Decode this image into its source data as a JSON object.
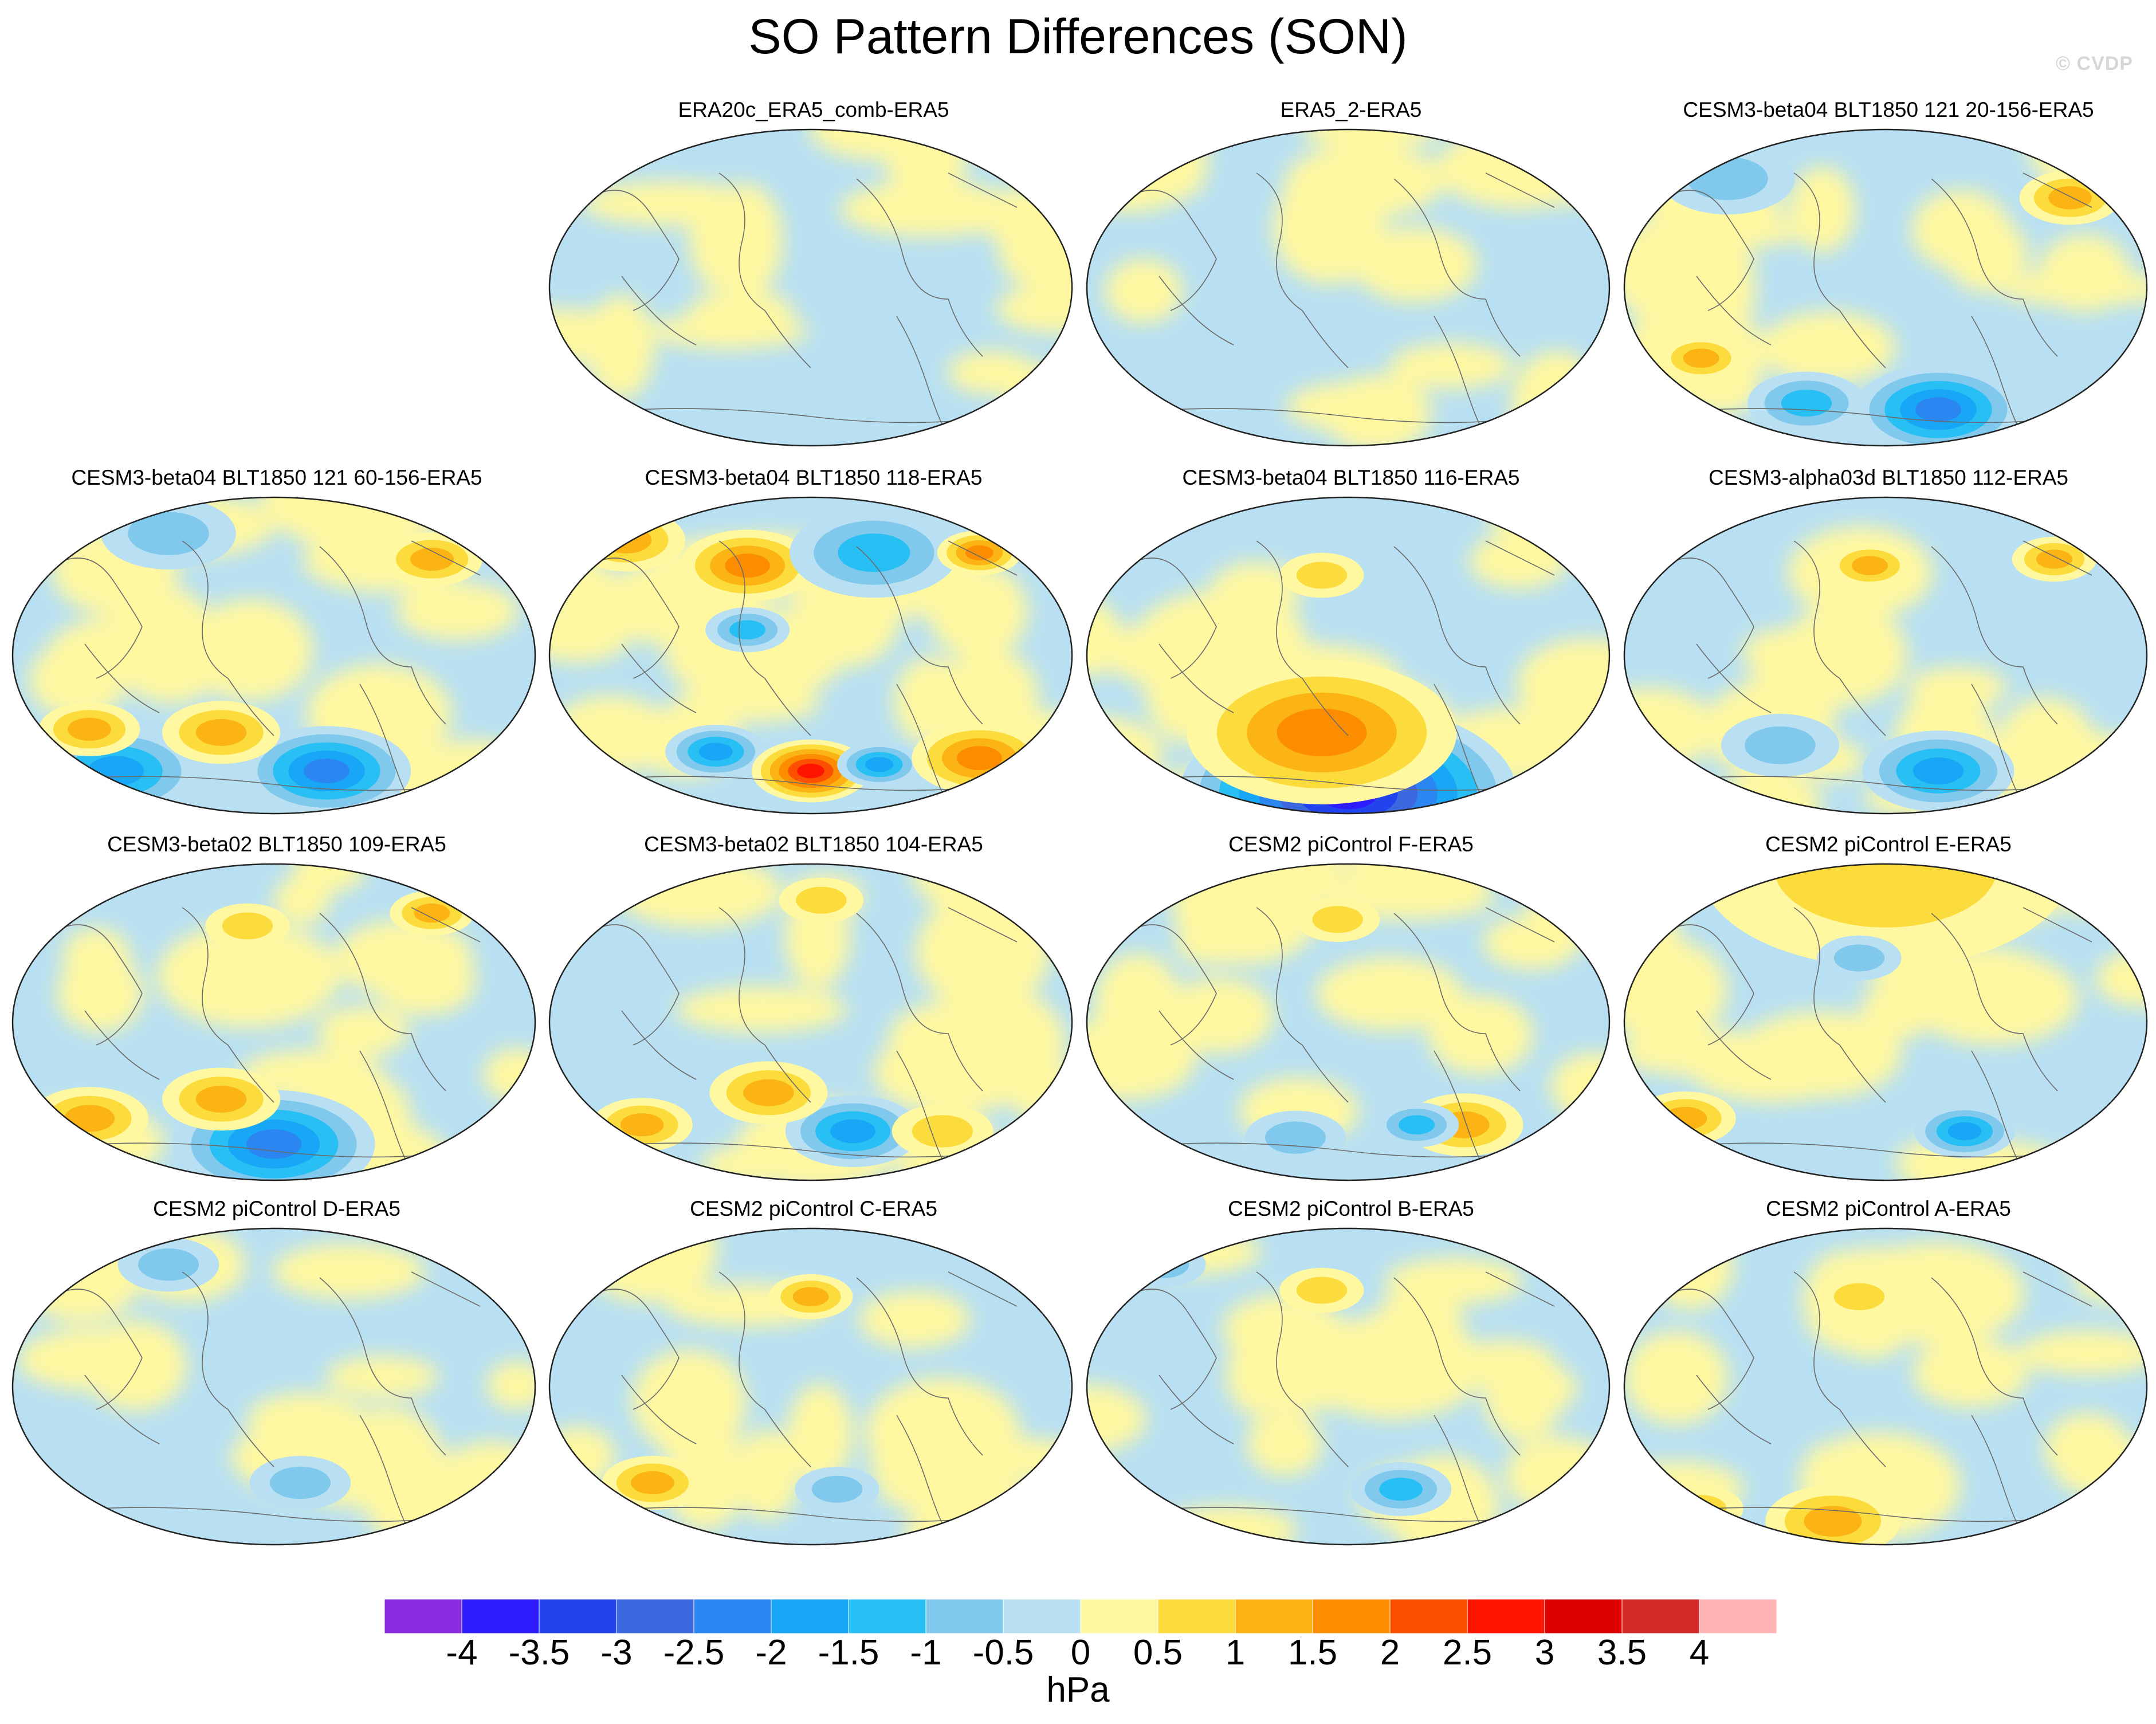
{
  "title": "SO Pattern Differences (SON)",
  "watermark": "© CVDP",
  "panels": [
    {
      "title": "ERA20c_ERA5_comb-ERA5",
      "anomalies": []
    },
    {
      "title": "ERA5_2-ERA5",
      "anomalies": []
    },
    {
      "title": "CESM3-beta04 BLT1850 121 20-156-ERA5",
      "anomalies": [
        [
          0.2,
          0.16,
          0.08,
          -0.9
        ],
        [
          0.85,
          0.22,
          0.06,
          1.2
        ],
        [
          0.6,
          0.88,
          0.1,
          -2.2
        ],
        [
          0.35,
          0.86,
          0.07,
          -1.1
        ],
        [
          0.15,
          0.72,
          0.05,
          1.1
        ]
      ]
    },
    {
      "title": "CESM3-beta04 BLT1850 121 60-156-ERA5",
      "anomalies": [
        [
          0.3,
          0.12,
          0.08,
          -1.0
        ],
        [
          0.8,
          0.2,
          0.06,
          1.3
        ],
        [
          0.6,
          0.86,
          0.1,
          -2.2
        ],
        [
          0.2,
          0.86,
          0.1,
          -1.6
        ],
        [
          0.15,
          0.73,
          0.06,
          1.4
        ],
        [
          0.4,
          0.74,
          0.07,
          1.1
        ]
      ]
    },
    {
      "title": "CESM3-beta04 BLT1850 118-ERA5",
      "anomalies": [
        [
          0.15,
          0.14,
          0.07,
          1.5
        ],
        [
          0.38,
          0.22,
          0.08,
          1.8
        ],
        [
          0.62,
          0.18,
          0.1,
          -1.4
        ],
        [
          0.82,
          0.18,
          0.05,
          1.6
        ],
        [
          0.38,
          0.42,
          0.05,
          -1.3
        ],
        [
          0.32,
          0.8,
          0.06,
          -1.6
        ],
        [
          0.5,
          0.86,
          0.07,
          3.0
        ],
        [
          0.63,
          0.84,
          0.05,
          -1.8
        ],
        [
          0.82,
          0.82,
          0.08,
          2.0
        ]
      ]
    },
    {
      "title": "CESM3-beta04 BLT1850 116-ERA5",
      "anomalies": [
        [
          0.5,
          0.93,
          0.2,
          -3.8
        ],
        [
          0.45,
          0.74,
          0.16,
          1.6
        ],
        [
          0.45,
          0.25,
          0.05,
          1.0
        ]
      ]
    },
    {
      "title": "CESM3-alpha03d BLT1850 112-ERA5",
      "anomalies": [
        [
          0.47,
          0.22,
          0.05,
          1.2
        ],
        [
          0.82,
          0.2,
          0.05,
          1.3
        ],
        [
          0.6,
          0.86,
          0.09,
          -1.9
        ],
        [
          0.3,
          0.78,
          0.07,
          -1.0
        ]
      ]
    },
    {
      "title": "CESM3-beta02 BLT1850 109-ERA5",
      "anomalies": [
        [
          0.5,
          0.88,
          0.12,
          -2.2
        ],
        [
          0.15,
          0.8,
          0.07,
          1.5
        ],
        [
          0.4,
          0.74,
          0.07,
          1.2
        ],
        [
          0.45,
          0.2,
          0.05,
          1.0
        ],
        [
          0.8,
          0.16,
          0.05,
          1.2
        ]
      ]
    },
    {
      "title": "CESM3-beta02 BLT1850 104-ERA5",
      "anomalies": [
        [
          0.58,
          0.84,
          0.08,
          -2.0
        ],
        [
          0.42,
          0.72,
          0.07,
          1.3
        ],
        [
          0.18,
          0.82,
          0.06,
          1.1
        ],
        [
          0.75,
          0.84,
          0.06,
          1.0
        ],
        [
          0.52,
          0.12,
          0.05,
          1.0
        ]
      ]
    },
    {
      "title": "CESM2 piControl F-ERA5",
      "anomalies": [
        [
          0.48,
          0.18,
          0.05,
          1.0
        ],
        [
          0.72,
          0.82,
          0.07,
          1.3
        ],
        [
          0.63,
          0.82,
          0.05,
          -1.2
        ],
        [
          0.4,
          0.86,
          0.06,
          -1.0
        ]
      ]
    },
    {
      "title": "CESM2 piControl E-ERA5",
      "anomalies": [
        [
          0.5,
          0.02,
          0.22,
          1.0
        ],
        [
          0.65,
          0.84,
          0.06,
          -1.6
        ],
        [
          0.12,
          0.8,
          0.06,
          1.2
        ],
        [
          0.45,
          0.3,
          0.05,
          -0.9
        ]
      ]
    },
    {
      "title": "CESM2 piControl D-ERA5",
      "anomalies": [
        [
          0.55,
          0.8,
          0.06,
          -1.0
        ],
        [
          0.3,
          0.12,
          0.06,
          -0.8
        ]
      ]
    },
    {
      "title": "CESM2 piControl C-ERA5",
      "anomalies": [
        [
          0.5,
          0.22,
          0.05,
          1.1
        ],
        [
          0.2,
          0.8,
          0.06,
          1.2
        ],
        [
          0.55,
          0.82,
          0.05,
          -1.0
        ]
      ]
    },
    {
      "title": "CESM2 piControl B-ERA5",
      "anomalies": [
        [
          0.45,
          0.2,
          0.05,
          1.0
        ],
        [
          0.6,
          0.82,
          0.06,
          -1.1
        ],
        [
          0.15,
          0.12,
          0.05,
          -0.9
        ]
      ]
    },
    {
      "title": "CESM2 piControl A-ERA5",
      "anomalies": [
        [
          0.45,
          0.22,
          0.05,
          1.0
        ],
        [
          0.4,
          0.92,
          0.08,
          1.2
        ],
        [
          0.15,
          0.88,
          0.05,
          1.0
        ]
      ]
    }
  ],
  "colorbar": {
    "units": "hPa",
    "levels": [
      "-4",
      "-3.5",
      "-3",
      "-2.5",
      "-2",
      "-1.5",
      "-1",
      "-0.5",
      "0",
      "0.5",
      "1",
      "1.5",
      "2",
      "2.5",
      "3",
      "3.5",
      "4"
    ],
    "colors": [
      "#8a2be2",
      "#2e1cff",
      "#2244ee",
      "#3c68e0",
      "#2c86f2",
      "#18a6f6",
      "#28c0f4",
      "#80c8ec",
      "#b8e0f2",
      "#fff8a0",
      "#fcdc3c",
      "#fcb414",
      "#fc8c00",
      "#fc5000",
      "#ff1400",
      "#de0000",
      "#d42a2a",
      "#ffb4b4"
    ]
  }
}
